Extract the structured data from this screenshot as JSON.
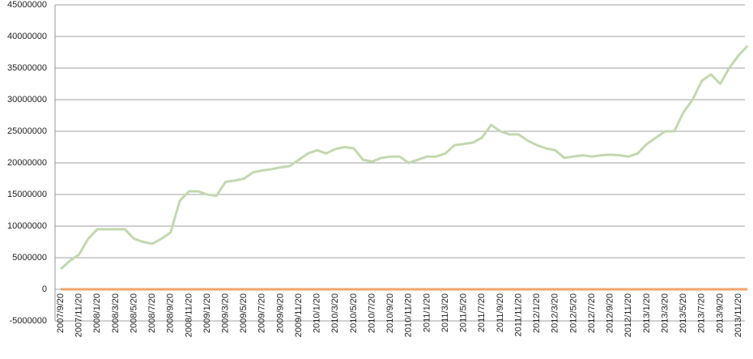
{
  "chart_data": {
    "type": "line",
    "categories": [
      "2007/9/20",
      null,
      "2007/11/20",
      null,
      "2008/1/20",
      null,
      "2008/3/20",
      null,
      "2008/5/20",
      null,
      "2008/7/20",
      null,
      "2008/9/20",
      null,
      "2008/11/20",
      null,
      "2009/1/20",
      null,
      "2009/3/20",
      null,
      "2009/5/20",
      null,
      "2009/7/20",
      null,
      "2009/9/20",
      null,
      "2009/11/20",
      null,
      "2010/1/20",
      null,
      "2010/3/20",
      null,
      "2010/5/20",
      null,
      "2010/7/20",
      null,
      "2010/9/20",
      null,
      "2010/11/20",
      null,
      "2011/1/20",
      null,
      "2011/3/20",
      null,
      "2011/5/20",
      null,
      "2011/7/20",
      null,
      "2011/9/20",
      null,
      "2011/11/20",
      null,
      "2012/1/20",
      null,
      "2012/3/20",
      null,
      "2012/5/20",
      null,
      "2012/7/20",
      null,
      "2012/9/20",
      null,
      "2012/11/20",
      null,
      "2013/1/20",
      null,
      "2013/3/20",
      null,
      "2013/5/20",
      null,
      "2013/7/20",
      null,
      "2013/9/20",
      null,
      "2013/11/20",
      null
    ],
    "series": [
      {
        "color": "#c4d7b0",
        "values": [
          3200000,
          4500000,
          5500000,
          8000000,
          9500000,
          9500000,
          9500000,
          9500000,
          8000000,
          7500000,
          7200000,
          8000000,
          9000000,
          14000000,
          15500000,
          15500000,
          15000000,
          14800000,
          17000000,
          17200000,
          17500000,
          18500000,
          18800000,
          19000000,
          19300000,
          19500000,
          20500000,
          21500000,
          22000000,
          21500000,
          22200000,
          22500000,
          22300000,
          20500000,
          20200000,
          20800000,
          21000000,
          21000000,
          20000000,
          20500000,
          21000000,
          21000000,
          21500000,
          22800000,
          23000000,
          23200000,
          24000000,
          26000000,
          25000000,
          24500000,
          24500000,
          23500000,
          22800000,
          22300000,
          22000000,
          20800000,
          21000000,
          21200000,
          21000000,
          21200000,
          21300000,
          21200000,
          21000000,
          21500000,
          23000000,
          24000000,
          25000000,
          25000000,
          28000000,
          30000000,
          33000000,
          34000000,
          32500000,
          35000000,
          37000000,
          38500000
        ]
      },
      {
        "color": "#f0a46c",
        "values": [
          0,
          0,
          0,
          0,
          0,
          0,
          0,
          0,
          0,
          0,
          0,
          0,
          0,
          0,
          0,
          0,
          0,
          0,
          0,
          0,
          0,
          0,
          0,
          0,
          0,
          0,
          0,
          0,
          0,
          0,
          0,
          0,
          0,
          0,
          0,
          0,
          0,
          0,
          0,
          0,
          0,
          0,
          0,
          0,
          0,
          0,
          0,
          0,
          0,
          0,
          0,
          0,
          0,
          0,
          0,
          0,
          0,
          0,
          0,
          0,
          0,
          0,
          0,
          0,
          0,
          0,
          0,
          0,
          0,
          0,
          0,
          0,
          0,
          0,
          0,
          0
        ]
      }
    ],
    "ylim": [
      -5000000,
      45000000
    ],
    "yticks": [
      -5000000,
      0,
      5000000,
      10000000,
      15000000,
      20000000,
      25000000,
      30000000,
      35000000,
      40000000,
      45000000
    ],
    "grid": true
  }
}
